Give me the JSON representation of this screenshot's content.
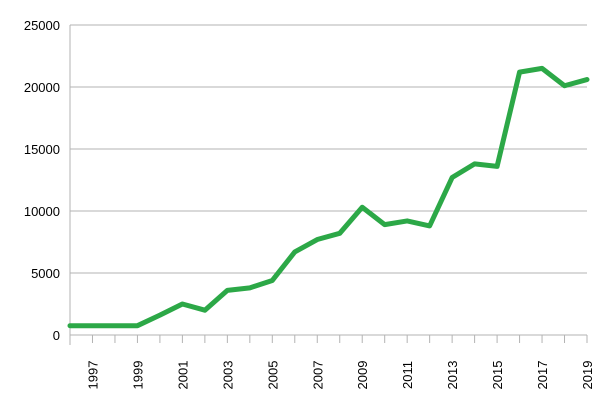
{
  "chart_data": {
    "type": "line",
    "title": "",
    "xlabel": "",
    "ylabel": "",
    "x": [
      1996,
      1997,
      1998,
      1999,
      2000,
      2001,
      2002,
      2003,
      2004,
      2005,
      2006,
      2007,
      2008,
      2009,
      2010,
      2011,
      2012,
      2013,
      2014,
      2015,
      2016,
      2017,
      2018,
      2019
    ],
    "x_tick_labels": [
      "1997",
      "1999",
      "2001",
      "2003",
      "2005",
      "2007",
      "2009",
      "2011",
      "2013",
      "2015",
      "2017",
      "2019"
    ],
    "x_tick_values": [
      1997,
      1999,
      2001,
      2003,
      2005,
      2007,
      2009,
      2011,
      2013,
      2015,
      2017,
      2019
    ],
    "y_tick_labels": [
      "0",
      "5000",
      "10000",
      "15000",
      "20000",
      "25000"
    ],
    "y_tick_values": [
      0,
      5000,
      10000,
      15000,
      20000,
      25000
    ],
    "ylim": [
      0,
      25000
    ],
    "grid": true,
    "legend": "none",
    "series": [
      {
        "color": "#2ca847",
        "values": [
          750,
          750,
          750,
          750,
          1600,
          2500,
          2000,
          3600,
          3800,
          4400,
          6700,
          7700,
          8200,
          10300,
          8900,
          9200,
          8800,
          12700,
          13800,
          13600,
          21200,
          21500,
          20100,
          20600
        ]
      }
    ]
  }
}
